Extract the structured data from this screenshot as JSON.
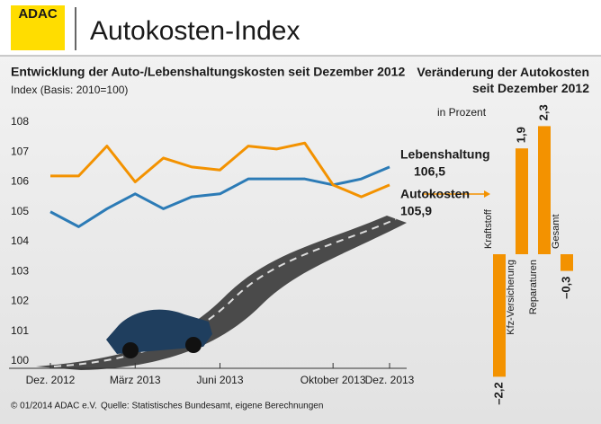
{
  "header": {
    "logo": "ADAC",
    "title": "Autokosten-Index"
  },
  "footer": {
    "copyright": "© 01/2014  ADAC e.V.",
    "source": "Quelle: Statistisches Bundesamt, eigene Berechnungen"
  },
  "chart_data": [
    {
      "type": "line",
      "title": "Entwicklung der Auto-/Lebenshaltungskosten seit Dezember 2012",
      "subtitle": "Index (Basis: 2010=100)",
      "categories": [
        "Dez. 2012",
        null,
        null,
        "März 2013",
        null,
        null,
        "Juni 2013",
        null,
        null,
        null,
        "Oktober 2013",
        null,
        "Dez. 2013"
      ],
      "series": [
        {
          "name": "Lebenshaltung",
          "color": "#2c7bb6",
          "values": [
            105.0,
            104.5,
            105.1,
            105.6,
            105.1,
            105.5,
            105.6,
            106.1,
            106.1,
            106.1,
            105.9,
            106.1,
            106.5
          ],
          "value_labels": [
            null,
            null,
            null,
            null,
            null,
            null,
            null,
            null,
            null,
            null,
            null,
            null,
            "106,5"
          ]
        },
        {
          "name": "Autokosten",
          "color": "#f39200",
          "values": [
            106.2,
            106.2,
            107.2,
            106.0,
            106.8,
            106.5,
            106.4,
            107.2,
            107.1,
            107.3,
            105.9,
            105.5,
            105.9
          ],
          "value_labels": [
            null,
            null,
            null,
            null,
            null,
            null,
            null,
            null,
            null,
            null,
            null,
            null,
            "105,9"
          ]
        }
      ],
      "ylim": [
        100,
        108
      ],
      "yticks": [
        100,
        101,
        102,
        103,
        104,
        105,
        106,
        107,
        108
      ],
      "grid": false
    },
    {
      "type": "bar",
      "title": "Veränderung der Autokosten seit Dezember 2012",
      "subtitle": "in Prozent",
      "categories": [
        "Kraftstoff",
        "Kfz-Versicherung",
        "Reparaturen",
        "Gesamt"
      ],
      "values": [
        -2.2,
        1.9,
        2.3,
        -0.3
      ],
      "value_labels": [
        "–2,2",
        "1,9",
        "2,3",
        "–0,3"
      ],
      "color": "#f39200"
    }
  ]
}
